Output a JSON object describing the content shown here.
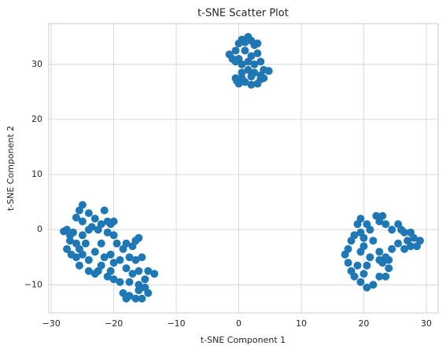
{
  "chart_data": {
    "type": "scatter",
    "title": "t-SNE Scatter Plot",
    "xlabel": "t-SNE Component 1",
    "ylabel": "t-SNE Component 2",
    "color": "#1f77b4",
    "grid": true,
    "xlim": [
      -30.4,
      31.9
    ],
    "ylim": [
      -15.1,
      37.4
    ],
    "xticks": [
      {
        "value": -30,
        "label": "−30"
      },
      {
        "value": -20,
        "label": "−20"
      },
      {
        "value": -10,
        "label": "−10"
      },
      0,
      10,
      20,
      30
    ],
    "yticks": [
      {
        "value": -10,
        "label": "−10"
      },
      0,
      10,
      20,
      30
    ],
    "x": [
      -1.5,
      -1,
      -0.5,
      0,
      0.5,
      1,
      1.5,
      2,
      2.5,
      3,
      3,
      2,
      1,
      0,
      -0.5,
      0.5,
      1.5,
      2.5,
      3.5,
      4,
      4.8,
      3.5,
      2.5,
      1.5,
      0.5,
      -0.5,
      0,
      1,
      2,
      3,
      3.5,
      0.5,
      -0.3,
      4,
      2,
      -28,
      -27.5,
      -27,
      -26.5,
      -27,
      -26,
      -27.5,
      -26.8,
      -26,
      -25,
      -25.5,
      -24.5,
      -25,
      -24,
      -25,
      -26,
      -25.5,
      -25,
      -24,
      -23,
      -23.5,
      -22,
      -21,
      -20.5,
      -20,
      -21.5,
      -22.5,
      -21,
      -20,
      -19.5,
      -22,
      -23,
      -24,
      -25.5,
      -24,
      -23,
      -22,
      -21.5,
      -20.5,
      -20,
      -19,
      -18.5,
      -18,
      -17,
      -16.5,
      -16,
      -17.5,
      -16.5,
      -15.5,
      -18,
      -17,
      -16,
      -14.5,
      -13.5,
      -15,
      -16,
      -17.5,
      -19,
      -20,
      -20.5,
      -18.5,
      -17.5,
      -16.5,
      -15.5,
      -14.5,
      -15,
      -18,
      -16,
      -21,
      -22.5,
      19.5,
      20.5,
      21,
      19.5,
      20,
      18.5,
      18,
      17.5,
      17,
      17.5,
      18,
      18.5,
      19.5,
      20.5,
      21.5,
      20,
      19,
      19.5,
      20,
      21,
      22.5,
      23,
      24,
      22.5,
      23.5,
      22,
      23,
      22.5,
      23.5,
      24.5,
      25.5,
      26,
      26.5,
      27.5,
      28,
      29,
      28.5,
      27.5,
      27,
      26.5,
      25.5,
      24.5,
      23.5,
      22.5,
      24,
      19,
      21.5,
      20.5
    ],
    "values": [
      31.8,
      31,
      32.5,
      33.8,
      34.5,
      34,
      35,
      34.3,
      33.5,
      33.8,
      32,
      31.5,
      32.5,
      31,
      30.5,
      30,
      30.5,
      30,
      30.5,
      29,
      28.8,
      28,
      28.5,
      29,
      28.5,
      27.5,
      26.5,
      26.8,
      26.3,
      26.5,
      27.3,
      27.5,
      27,
      27.5,
      27.8,
      -0.3,
      0,
      -1,
      -0.5,
      -2,
      -2.5,
      -3.5,
      -4.5,
      -5,
      -4.5,
      -3.5,
      -2.5,
      -1,
      0,
      1.5,
      2.2,
      3.5,
      4.5,
      3,
      2,
      0.5,
      1,
      1.5,
      1,
      1.5,
      3.5,
      0,
      -0.5,
      -1,
      -2.5,
      -2.5,
      -4,
      -5.5,
      -6.5,
      -7.5,
      -8,
      -6.5,
      -5,
      -4.5,
      -6,
      -5.5,
      -3.5,
      -2.5,
      -3,
      -2,
      -1.5,
      -5,
      -5.5,
      -5,
      -7,
      -8,
      -7.5,
      -7.5,
      -8,
      -9,
      -10,
      -9.5,
      -9.5,
      -9,
      -7.5,
      -11.5,
      -12,
      -12.5,
      -12.5,
      -11.5,
      -10.5,
      -12.5,
      -11,
      -8.5,
      -7.5,
      2,
      1,
      0,
      -0.5,
      -1.5,
      -1,
      -2,
      -3.5,
      -4.5,
      -6,
      -7.5,
      -8.5,
      -9.5,
      -10.5,
      -10,
      -8,
      -6.5,
      -4,
      -3,
      -5,
      -4,
      -6,
      -7,
      -8.5,
      -8.5,
      2.5,
      2.5,
      1.5,
      1,
      0,
      1,
      0,
      -0.5,
      -0.5,
      -1.5,
      -2,
      -3,
      -3,
      -2,
      -3.5,
      -2.5,
      -3.5,
      -5,
      -5.5,
      -5.5,
      1,
      -2,
      -6.5
    ]
  }
}
